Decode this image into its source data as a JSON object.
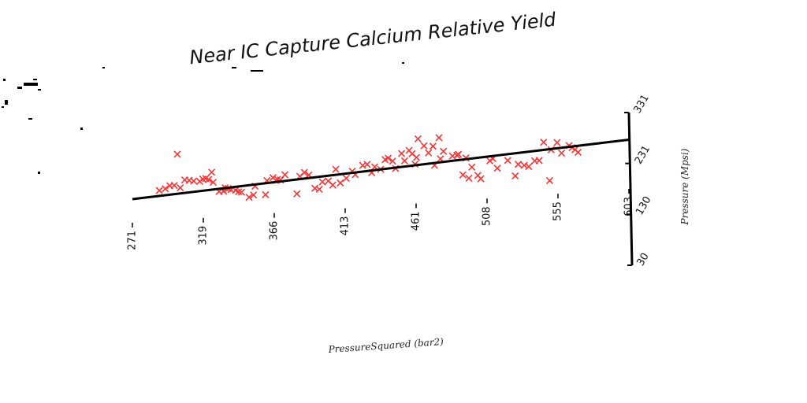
{
  "chart_data": {
    "type": "scatter",
    "title": "Near IC Capture Calcium Relative Yield",
    "xlabel": "PressureSquared (bar2)",
    "ylabel": "Pressure (Mpsi)",
    "xlim": [
      271,
      603
    ],
    "ylim": [
      30,
      331
    ],
    "xticks": [
      "271",
      "319",
      "366",
      "413",
      "461",
      "508",
      "555",
      "603"
    ],
    "yticks": [
      "30",
      "130",
      "231",
      "331"
    ],
    "marker": "x",
    "marker_color": "#ff3333",
    "axis_color": "#000000",
    "grid": false,
    "points": [
      [
        289,
        150
      ],
      [
        293,
        155
      ],
      [
        296,
        166
      ],
      [
        299,
        166
      ],
      [
        301,
        288
      ],
      [
        303,
        155
      ],
      [
        306,
        185
      ],
      [
        309,
        182
      ],
      [
        312,
        178
      ],
      [
        316,
        175
      ],
      [
        318,
        183
      ],
      [
        320,
        185
      ],
      [
        322,
        180
      ],
      [
        324,
        208
      ],
      [
        325,
        168
      ],
      [
        329,
        130
      ],
      [
        332,
        130
      ],
      [
        333,
        143
      ],
      [
        335,
        139
      ],
      [
        337,
        134
      ],
      [
        340,
        130
      ],
      [
        342,
        124
      ],
      [
        344,
        121
      ],
      [
        349,
        99
      ],
      [
        352,
        107
      ],
      [
        353,
        141
      ],
      [
        360,
        105
      ],
      [
        361,
        160
      ],
      [
        365,
        170
      ],
      [
        367,
        158
      ],
      [
        368,
        162
      ],
      [
        370,
        159
      ],
      [
        373,
        178
      ],
      [
        381,
        100
      ],
      [
        383,
        168
      ],
      [
        386,
        182
      ],
      [
        389,
        171
      ],
      [
        393,
        117
      ],
      [
        396,
        112
      ],
      [
        398,
        140
      ],
      [
        402,
        142
      ],
      [
        405,
        125
      ],
      [
        407,
        186
      ],
      [
        410,
        131
      ],
      [
        414,
        148
      ],
      [
        418,
        174
      ],
      [
        420,
        160
      ],
      [
        425,
        194
      ],
      [
        428,
        197
      ],
      [
        431,
        163
      ],
      [
        433,
        185
      ],
      [
        437,
        174
      ],
      [
        440,
        211
      ],
      [
        442,
        216
      ],
      [
        445,
        203
      ],
      [
        447,
        173
      ],
      [
        451,
        231
      ],
      [
        453,
        201
      ],
      [
        456,
        241
      ],
      [
        458,
        227
      ],
      [
        460,
        185
      ],
      [
        461,
        211
      ],
      [
        462,
        284
      ],
      [
        466,
        255
      ],
      [
        469,
        226
      ],
      [
        472,
        251
      ],
      [
        473,
        175
      ],
      [
        476,
        283
      ],
      [
        477,
        199
      ],
      [
        479,
        228
      ],
      [
        485,
        207
      ],
      [
        488,
        209
      ],
      [
        489,
        212
      ],
      [
        492,
        130
      ],
      [
        494,
        196
      ],
      [
        496,
        115
      ],
      [
        498,
        158
      ],
      [
        502,
        124
      ],
      [
        504,
        110
      ],
      [
        510,
        178
      ],
      [
        512,
        186
      ],
      [
        515,
        147
      ],
      [
        522,
        175
      ],
      [
        527,
        112
      ],
      [
        529,
        157
      ],
      [
        533,
        151
      ],
      [
        536,
        145
      ],
      [
        540,
        166
      ],
      [
        543,
        166
      ],
      [
        546,
        237
      ],
      [
        550,
        84
      ],
      [
        551,
        205
      ],
      [
        555,
        232
      ],
      [
        558,
        189
      ],
      [
        563,
        217
      ],
      [
        565,
        208
      ],
      [
        567,
        199
      ],
      [
        569,
        188
      ]
    ],
    "trendline": {
      "x": [
        271,
        603
      ],
      "y": [
        123,
        224
      ]
    }
  },
  "decor": {
    "specks": [
      [
        30,
        105,
        18,
        4
      ],
      [
        22,
        110,
        6,
        3
      ],
      [
        42,
        100,
        5,
        2
      ],
      [
        48,
        113,
        4,
        2
      ],
      [
        4,
        100,
        3,
        3
      ],
      [
        6,
        127,
        4,
        6
      ],
      [
        2,
        135,
        3,
        2
      ],
      [
        36,
        150,
        5,
        2
      ],
      [
        102,
        162,
        3,
        3
      ],
      [
        48,
        218,
        3,
        3
      ],
      [
        294,
        85,
        6,
        2
      ],
      [
        318,
        89,
        16,
        2
      ],
      [
        130,
        85,
        3,
        2
      ],
      [
        510,
        79,
        3,
        2
      ]
    ]
  }
}
